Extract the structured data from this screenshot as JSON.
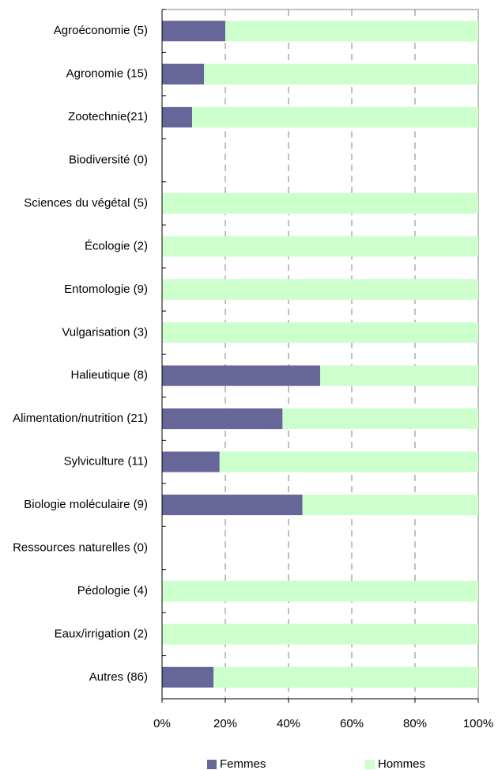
{
  "chart_data": {
    "type": "stacked_barh",
    "categories": [
      "Agroéconomie (5)",
      "Agronomie (15)",
      "Zootechnie(21)",
      "Biodiversité (0)",
      "Sciences du végétal (5)",
      "Écologie (2)",
      "Entomologie (9)",
      "Vulgarisation  (3)",
      "Halieutique (8)",
      "Alimentation/nutrition (21)",
      "Sylviculture (11)",
      "Biologie moléculaire (9)",
      "Ressources naturelles (0)",
      "Pédologie (4)",
      "Eaux/irrigation  (2)",
      "Autres (86)"
    ],
    "series": [
      {
        "name": "Femmes",
        "color": "#666699",
        "values": [
          20,
          13.3,
          9.5,
          0,
          0,
          0,
          0,
          0,
          50,
          38.1,
          18.2,
          44.4,
          0,
          0,
          0,
          16.3
        ]
      },
      {
        "name": "Hommes",
        "color": "#ccffcc",
        "values": [
          80,
          86.7,
          90.5,
          0,
          100,
          100,
          100,
          100,
          50,
          61.9,
          81.8,
          55.6,
          0,
          100,
          100,
          83.7
        ]
      }
    ],
    "xlim": [
      0,
      100
    ],
    "xticks": [
      {
        "value": 0,
        "label": "0%"
      },
      {
        "value": 20,
        "label": "20%"
      },
      {
        "value": 40,
        "label": "40%"
      },
      {
        "value": 60,
        "label": "60%"
      },
      {
        "value": 80,
        "label": "80%"
      },
      {
        "value": 100,
        "label": "100%"
      }
    ],
    "grid": true,
    "legend": "bottom"
  }
}
